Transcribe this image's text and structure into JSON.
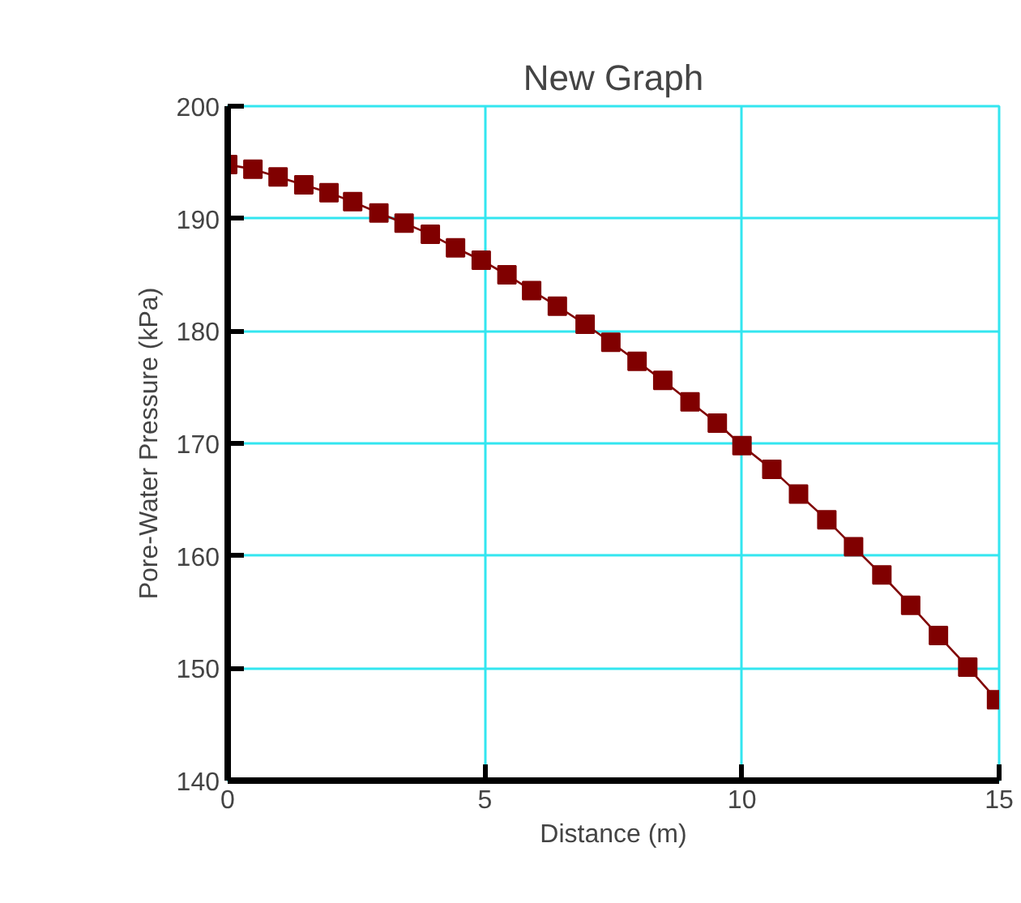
{
  "chart_data": {
    "type": "line",
    "title": "New Graph",
    "xlabel": "Distance (m)",
    "ylabel": "Pore-Water Pressure (kPa)",
    "x": [
      0,
      0.49,
      0.98,
      1.48,
      1.97,
      2.43,
      2.94,
      3.43,
      3.94,
      4.43,
      4.93,
      5.43,
      5.91,
      6.41,
      6.95,
      7.45,
      7.96,
      8.46,
      8.99,
      9.52,
      10.0,
      10.58,
      11.1,
      11.65,
      12.17,
      12.72,
      13.28,
      13.82,
      14.39,
      14.95
    ],
    "series": [
      {
        "color": "#800000",
        "values": [
          194.8,
          194.4,
          193.7,
          193.0,
          192.3,
          191.5,
          190.5,
          189.6,
          188.6,
          187.4,
          186.3,
          185.0,
          183.6,
          182.2,
          180.6,
          179.0,
          177.3,
          175.6,
          173.7,
          171.8,
          169.8,
          167.7,
          165.5,
          163.2,
          160.8,
          158.3,
          155.6,
          152.9,
          150.1,
          147.2
        ]
      }
    ],
    "xlim": [
      0,
      15
    ],
    "ylim": [
      140,
      200
    ],
    "xticks": [
      0,
      5,
      10,
      15
    ],
    "yticks": [
      140,
      150,
      160,
      170,
      180,
      190,
      200
    ],
    "grid": true,
    "marker": "square",
    "line_style": "solid"
  }
}
